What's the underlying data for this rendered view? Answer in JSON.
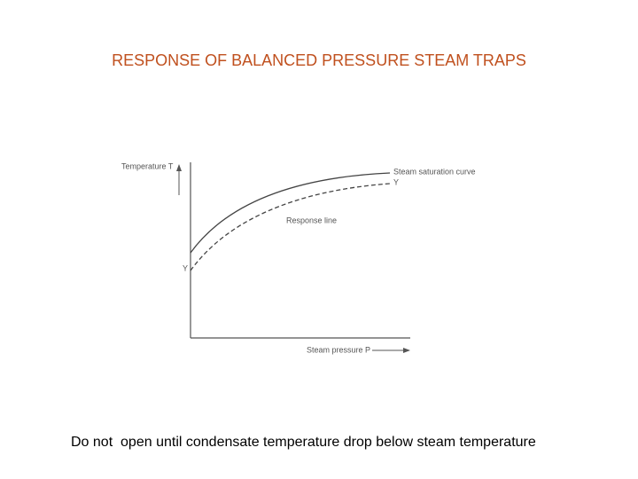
{
  "title": "RESPONSE OF BALANCED PRESSURE STEAM TRAPS",
  "diagram": {
    "y_axis_label": "Temperature T",
    "x_axis_label": "Steam pressure P",
    "curve_label": "Steam saturation curve",
    "curve_end_label": "Y",
    "response_label": "Response line",
    "response_start_label": "Y"
  },
  "caption": "Do not  open until condensate temperature drop below steam temperature"
}
